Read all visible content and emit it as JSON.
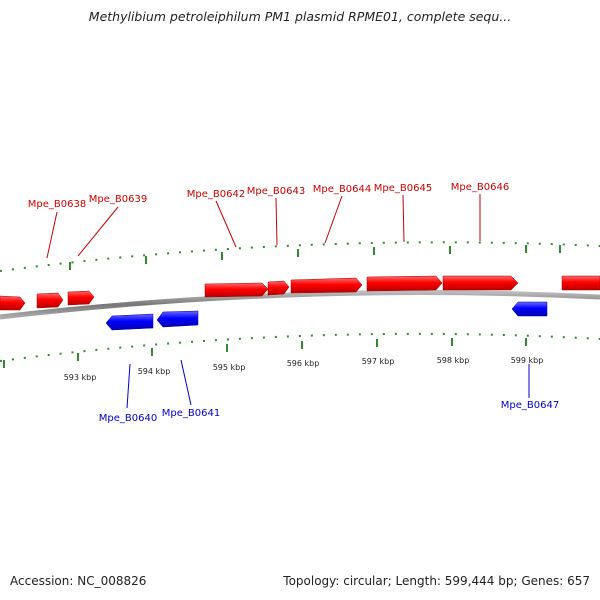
{
  "title": "Methylibium petroleiphilum PM1 plasmid RPME01, complete sequ...",
  "footer": {
    "accession": "Accession: NC_008826",
    "summary": "Topology: circular; Length: 599,444 bp; Genes: 657"
  },
  "colors": {
    "forward": "#ff0000",
    "reverse": "#0000ff",
    "backbone": "#888888",
    "tick": "#2e8b2e"
  },
  "ticks": [
    {
      "label": "593 kbp"
    },
    {
      "label": "594 kbp"
    },
    {
      "label": "595 kbp"
    },
    {
      "label": "596 kbp"
    },
    {
      "label": "597 kbp"
    },
    {
      "label": "598 kbp"
    },
    {
      "label": "599 kbp"
    }
  ],
  "forward_labels": [
    {
      "name": "Mpe_B0638"
    },
    {
      "name": "Mpe_B0639"
    },
    {
      "name": "Mpe_B0642"
    },
    {
      "name": "Mpe_B0643"
    },
    {
      "name": "Mpe_B0644"
    },
    {
      "name": "Mpe_B0645"
    },
    {
      "name": "Mpe_B0646"
    }
  ],
  "reverse_labels": [
    {
      "name": "Mpe_B0640"
    },
    {
      "name": "Mpe_B0641"
    },
    {
      "name": "Mpe_B0647"
    }
  ]
}
